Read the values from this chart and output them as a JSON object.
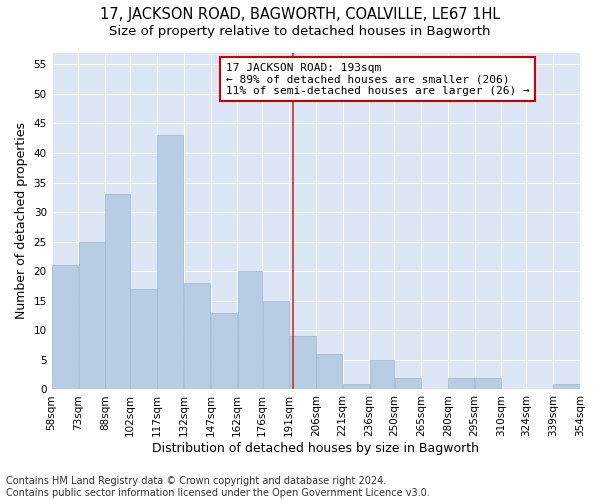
{
  "title1": "17, JACKSON ROAD, BAGWORTH, COALVILLE, LE67 1HL",
  "title2": "Size of property relative to detached houses in Bagworth",
  "xlabel": "Distribution of detached houses by size in Bagworth",
  "ylabel": "Number of detached properties",
  "footer1": "Contains HM Land Registry data © Crown copyright and database right 2024.",
  "footer2": "Contains public sector information licensed under the Open Government Licence v3.0.",
  "annotation_line1": "17 JACKSON ROAD: 193sqm",
  "annotation_line2": "← 89% of detached houses are smaller (206)",
  "annotation_line3": "11% of semi-detached houses are larger (26) →",
  "property_size": 193,
  "bar_left_edges": [
    58,
    73,
    88,
    102,
    117,
    132,
    147,
    162,
    176,
    191,
    206,
    221,
    236,
    250,
    265,
    280,
    295,
    310,
    324,
    339
  ],
  "bar_widths": [
    15,
    15,
    14,
    15,
    15,
    15,
    15,
    14,
    15,
    15,
    15,
    15,
    14,
    15,
    15,
    15,
    15,
    14,
    15,
    15
  ],
  "bar_heights": [
    21,
    25,
    33,
    17,
    43,
    18,
    13,
    20,
    15,
    9,
    6,
    1,
    5,
    2,
    0,
    2,
    2,
    0,
    0,
    1
  ],
  "bar_color": "#b8cce4",
  "bar_edge_color": "#9ab7d3",
  "vline_x": 193,
  "vline_color": "#c0392b",
  "annotation_box_color": "#ffffff",
  "annotation_box_edge_color": "#cc0000",
  "ylim": [
    0,
    57
  ],
  "yticks": [
    0,
    5,
    10,
    15,
    20,
    25,
    30,
    35,
    40,
    45,
    50,
    55
  ],
  "xlim": [
    58,
    354
  ],
  "xtick_labels": [
    "58sqm",
    "73sqm",
    "88sqm",
    "102sqm",
    "117sqm",
    "132sqm",
    "147sqm",
    "162sqm",
    "176sqm",
    "191sqm",
    "206sqm",
    "221sqm",
    "236sqm",
    "250sqm",
    "265sqm",
    "280sqm",
    "295sqm",
    "310sqm",
    "324sqm",
    "339sqm",
    "354sqm"
  ],
  "xtick_positions": [
    58,
    73,
    88,
    102,
    117,
    132,
    147,
    162,
    176,
    191,
    206,
    221,
    236,
    250,
    265,
    280,
    295,
    310,
    324,
    339,
    354
  ],
  "figure_bg_color": "#ffffff",
  "plot_bg_color": "#dce6f5",
  "grid_color": "#ffffff",
  "title_fontsize": 10.5,
  "subtitle_fontsize": 9.5,
  "axis_label_fontsize": 9,
  "tick_fontsize": 7.5,
  "annotation_fontsize": 8,
  "footer_fontsize": 7
}
